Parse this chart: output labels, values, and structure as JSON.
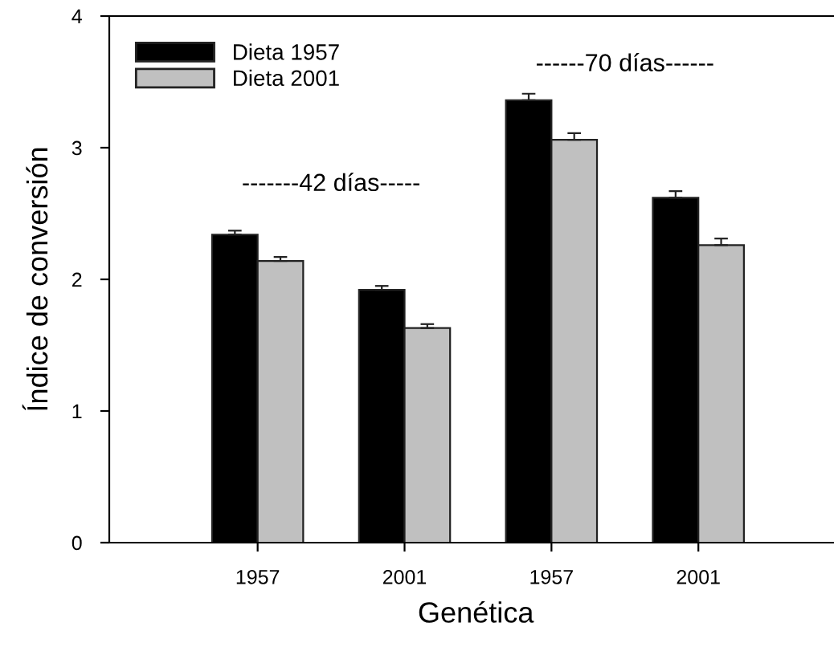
{
  "chart_data": {
    "type": "bar",
    "xlabel": "Genética",
    "ylabel": "Índice de conversión",
    "categories": [
      "1957",
      "2001",
      "1957",
      "2001"
    ],
    "series": [
      {
        "name": "Dieta 1957",
        "color": "#000000",
        "values": [
          2.34,
          1.92,
          3.36,
          2.62
        ],
        "errors": [
          0.03,
          0.03,
          0.05,
          0.05
        ]
      },
      {
        "name": "Dieta 2001",
        "color": "#c0c0c0",
        "values": [
          2.14,
          1.63,
          3.06,
          2.26
        ],
        "errors": [
          0.03,
          0.03,
          0.05,
          0.05
        ]
      }
    ],
    "ylim": [
      0,
      4
    ],
    "yticks": [
      0,
      1,
      2,
      3,
      4
    ],
    "grid": false,
    "legend": "top left",
    "annotations": [
      "-------42 días-----",
      "------70 días------"
    ]
  }
}
